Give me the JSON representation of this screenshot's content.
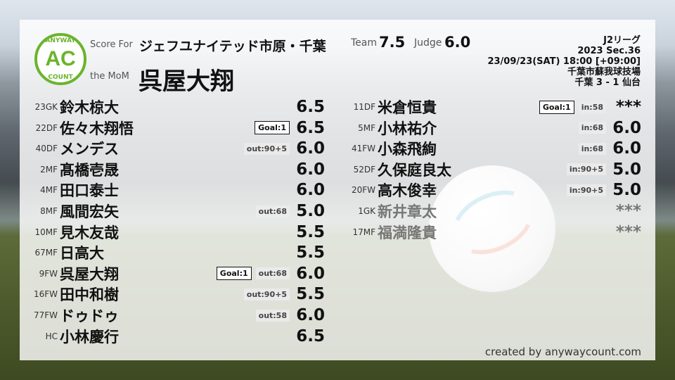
{
  "logo": {
    "top": "ANYWAY",
    "center": "AC",
    "bottom": "COUNT",
    "color": "#6ab42c"
  },
  "header": {
    "score_for_label": "Score For",
    "team": "ジェフユナイテッド市原・千葉",
    "mom_label": "the MoM",
    "mom": "呉屋大翔",
    "team_label": "Team",
    "team_score": "7.5",
    "judge_label": "Judge",
    "judge_score": "6.0"
  },
  "match": {
    "league": "J2リーグ",
    "section": "2023 Sec.36",
    "datetime": "23/09/23(SAT) 18:00 [+09:00]",
    "venue": "千葉市蘇我球技場",
    "result": "千葉 3 - 1 仙台"
  },
  "starters": [
    {
      "pos": "23GK",
      "name": "鈴木椋大",
      "tags": [],
      "score": "6.5"
    },
    {
      "pos": "22DF",
      "name": "佐々木翔悟",
      "tags": [
        {
          "t": "Goal:1",
          "goal": true
        }
      ],
      "score": "6.5"
    },
    {
      "pos": "40DF",
      "name": "メンデス",
      "tags": [
        {
          "t": "out:90+5"
        }
      ],
      "score": "6.0"
    },
    {
      "pos": "2MF",
      "name": "髙橋壱晟",
      "tags": [],
      "score": "6.0"
    },
    {
      "pos": "4MF",
      "name": "田口泰士",
      "tags": [],
      "score": "6.0"
    },
    {
      "pos": "8MF",
      "name": "風間宏矢",
      "tags": [
        {
          "t": "out:68"
        }
      ],
      "score": "5.0"
    },
    {
      "pos": "10MF",
      "name": "見木友哉",
      "tags": [],
      "score": "5.5"
    },
    {
      "pos": "67MF",
      "name": "日高大",
      "tags": [],
      "score": "5.5"
    },
    {
      "pos": "9FW",
      "name": "呉屋大翔",
      "tags": [
        {
          "t": "Goal:1",
          "goal": true
        },
        {
          "t": "out:68"
        }
      ],
      "score": "6.0"
    },
    {
      "pos": "16FW",
      "name": "田中和樹",
      "tags": [
        {
          "t": "out:90+5"
        }
      ],
      "score": "5.5"
    },
    {
      "pos": "77FW",
      "name": "ドゥドゥ",
      "tags": [
        {
          "t": "out:58"
        }
      ],
      "score": "6.0"
    },
    {
      "pos": "HC",
      "name": "小林慶行",
      "tags": [],
      "score": "6.5"
    }
  ],
  "subs": [
    {
      "pos": "11DF",
      "name": "米倉恒貴",
      "tags": [
        {
          "t": "Goal:1",
          "goal": true
        },
        {
          "t": "in:58"
        }
      ],
      "score": "***"
    },
    {
      "pos": "5MF",
      "name": "小林祐介",
      "tags": [
        {
          "t": "in:68"
        }
      ],
      "score": "6.0"
    },
    {
      "pos": "41FW",
      "name": "小森飛絢",
      "tags": [
        {
          "t": "in:68"
        }
      ],
      "score": "6.0"
    },
    {
      "pos": "52DF",
      "name": "久保庭良太",
      "tags": [
        {
          "t": "in:90+5"
        }
      ],
      "score": "5.0"
    },
    {
      "pos": "20FW",
      "name": "高木俊幸",
      "tags": [
        {
          "t": "in:90+5"
        }
      ],
      "score": "5.0"
    },
    {
      "pos": "1GK",
      "name": "新井章太",
      "tags": [],
      "score": "***",
      "unused": true
    },
    {
      "pos": "17MF",
      "name": "福満隆貴",
      "tags": [],
      "score": "***",
      "unused": true
    }
  ],
  "credit": "created by anywaycount.com"
}
